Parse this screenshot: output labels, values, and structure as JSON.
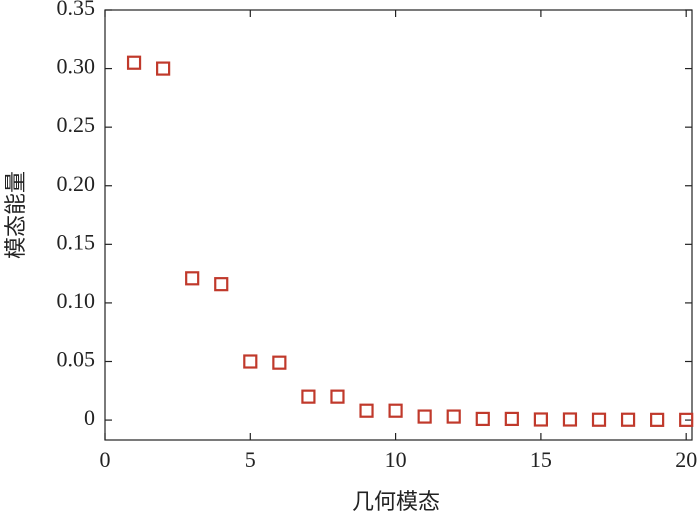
{
  "chart_data": {
    "type": "scatter",
    "x": [
      1,
      2,
      3,
      4,
      5,
      6,
      7,
      8,
      9,
      10,
      11,
      12,
      13,
      14,
      15,
      16,
      17,
      18,
      19,
      20
    ],
    "values": [
      0.305,
      0.3,
      0.121,
      0.116,
      0.05,
      0.049,
      0.02,
      0.02,
      0.008,
      0.008,
      0.003,
      0.003,
      0.001,
      0.001,
      0.0005,
      0.0005,
      0.0003,
      0.0003,
      0.0002,
      0.0002
    ],
    "color": "#c0392b",
    "x_label": "几何模态",
    "y_label": "模态能量",
    "xlim": [
      0,
      20.2
    ],
    "ylim": [
      -0.017,
      0.35
    ],
    "xticks": [
      0,
      5,
      10,
      15,
      20
    ],
    "yticks": [
      0,
      0.05,
      {
        "value": 0.1,
        "label": "0.10"
      },
      0.15,
      {
        "value": 0.2,
        "label": "0.20"
      },
      0.25,
      {
        "value": 0.3,
        "label": "0.30"
      },
      0.35
    ]
  }
}
